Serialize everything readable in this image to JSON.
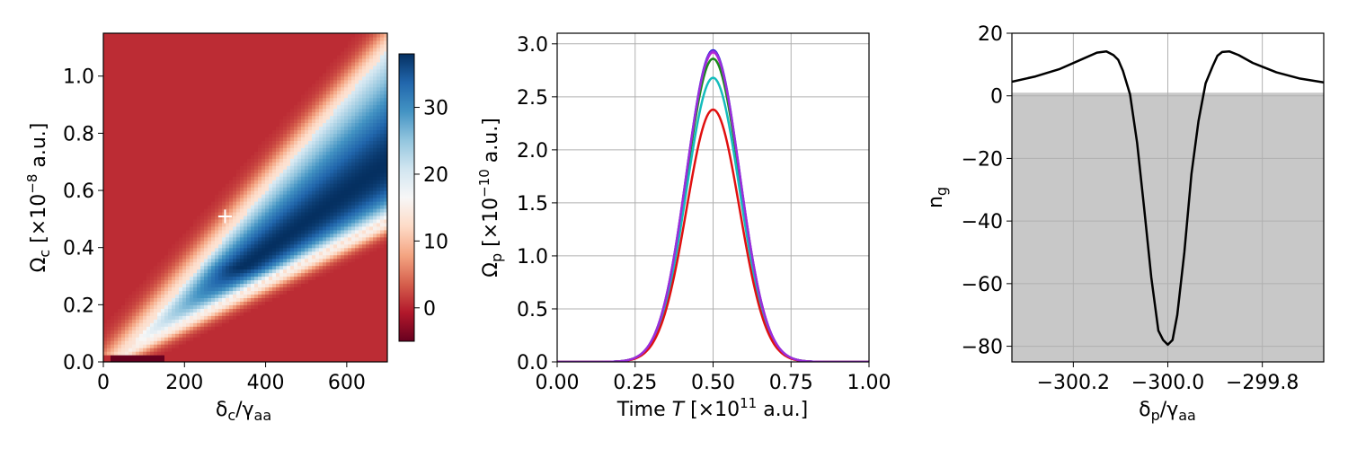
{
  "chart_data": [
    {
      "type": "heatmap",
      "xlabel": "δc/γaa",
      "ylabel": "Ωc [×10⁻⁸ a.u.]",
      "xlim": [
        0,
        700
      ],
      "ylim": [
        0,
        1.15
      ],
      "xticks": [
        0,
        200,
        400,
        600
      ],
      "yticks": [
        0.0,
        0.2,
        0.4,
        0.6,
        0.8,
        1.0
      ],
      "colormap": "RdBu",
      "colorbar": {
        "range": [
          -5,
          38
        ],
        "ticks": [
          0,
          10,
          20,
          30
        ]
      },
      "marker": {
        "symbol": "+",
        "x": 300,
        "y": 0.51,
        "color": "#ffffff"
      }
    },
    {
      "type": "line",
      "xlabel": "Time T [×10¹¹ a.u.]",
      "ylabel": "Ωp [×10⁻¹⁰ a.u.]",
      "xlim": [
        0,
        1
      ],
      "ylim": [
        0,
        3.1
      ],
      "xticks": [
        0.0,
        0.25,
        0.5,
        0.75,
        1.0
      ],
      "yticks": [
        0.0,
        0.5,
        1.0,
        1.5,
        2.0,
        2.5,
        3.0
      ],
      "grid": true,
      "pulse": {
        "center": 0.5,
        "sigma": 0.085
      },
      "series": [
        {
          "peak": 2.94,
          "color": "#1f1fd6"
        },
        {
          "peak": 2.92,
          "color": "#d020d0"
        },
        {
          "peak": 2.86,
          "color": "#1a8a1a"
        },
        {
          "peak": 2.68,
          "color": "#14bcbc"
        },
        {
          "peak": 2.38,
          "color": "#e01010"
        },
        {
          "peak": 2.93,
          "color": "#9b2ddb"
        }
      ]
    },
    {
      "type": "line",
      "xlabel": "δp/γaa",
      "ylabel": "ng",
      "xlim": [
        -300.33,
        -299.67
      ],
      "ylim": [
        -85,
        20
      ],
      "xticks": [
        -300.2,
        -300.0,
        -299.8
      ],
      "yticks": [
        20,
        0,
        -20,
        -40,
        -60,
        -80
      ],
      "grid": true,
      "shaded_region": {
        "from": -85,
        "to": 1,
        "color": "#c8c8c8"
      },
      "series": [
        {
          "color": "#000000",
          "x": [
            -300.33,
            -300.28,
            -300.23,
            -300.18,
            -300.15,
            -300.13,
            -300.115,
            -300.105,
            -300.095,
            -300.08,
            -300.065,
            -300.05,
            -300.035,
            -300.02,
            -300.01,
            -300.0,
            -299.99,
            -299.98,
            -299.965,
            -299.95,
            -299.935,
            -299.92,
            -299.905,
            -299.895,
            -299.885,
            -299.87,
            -299.85,
            -299.82,
            -299.77,
            -299.72,
            -299.67
          ],
          "y": [
            4.5,
            6.2,
            8.5,
            11.8,
            13.8,
            14.2,
            13.0,
            11.5,
            8.0,
            0.5,
            -15.0,
            -36.0,
            -58.0,
            -75.0,
            -78.0,
            -79.5,
            -78.0,
            -70.0,
            -50.0,
            -25.0,
            -8.0,
            4.0,
            9.5,
            12.8,
            14.0,
            14.2,
            13.0,
            10.5,
            7.5,
            5.5,
            4.3
          ]
        }
      ]
    }
  ]
}
